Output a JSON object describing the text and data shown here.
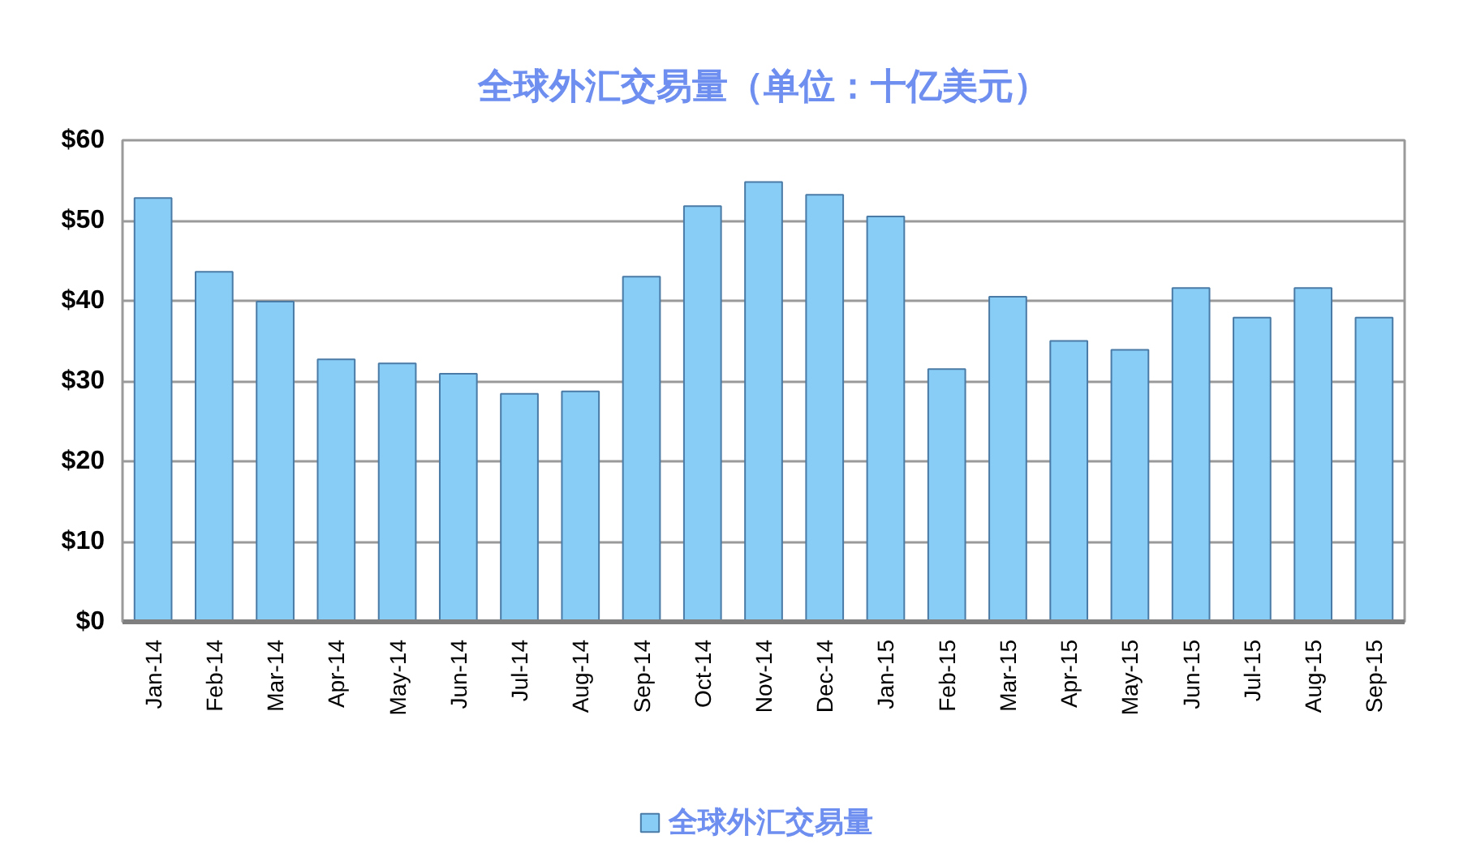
{
  "chart_data": {
    "type": "bar",
    "title": "全球外汇交易量（单位：十亿美元）",
    "categories": [
      "Jan-14",
      "Feb-14",
      "Mar-14",
      "Apr-14",
      "May-14",
      "Jun-14",
      "Jul-14",
      "Aug-14",
      "Sep-14",
      "Oct-14",
      "Nov-14",
      "Dec-14",
      "Jan-15",
      "Feb-15",
      "Mar-15",
      "Apr-15",
      "May-15",
      "Jun-15",
      "Jul-15",
      "Aug-15",
      "Sep-15"
    ],
    "series": [
      {
        "name": "全球外汇交易量",
        "color": "#88cdf6",
        "values": [
          52.8,
          43.6,
          39.9,
          32.7,
          32.2,
          30.9,
          28.4,
          28.7,
          43.0,
          51.8,
          54.8,
          53.2,
          50.5,
          31.5,
          40.5,
          35.0,
          33.9,
          41.6,
          37.9,
          41.6,
          37.9
        ]
      }
    ],
    "ylim": [
      0,
      60
    ],
    "yticks": [
      {
        "value": 0,
        "label": "$0"
      },
      {
        "value": 10,
        "label": "$10"
      },
      {
        "value": 20,
        "label": "$20"
      },
      {
        "value": 30,
        "label": "$30"
      },
      {
        "value": 40,
        "label": "$40"
      },
      {
        "value": 50,
        "label": "$50"
      },
      {
        "value": 60,
        "label": "$60"
      }
    ],
    "grid": "y",
    "legend": "bottom"
  }
}
